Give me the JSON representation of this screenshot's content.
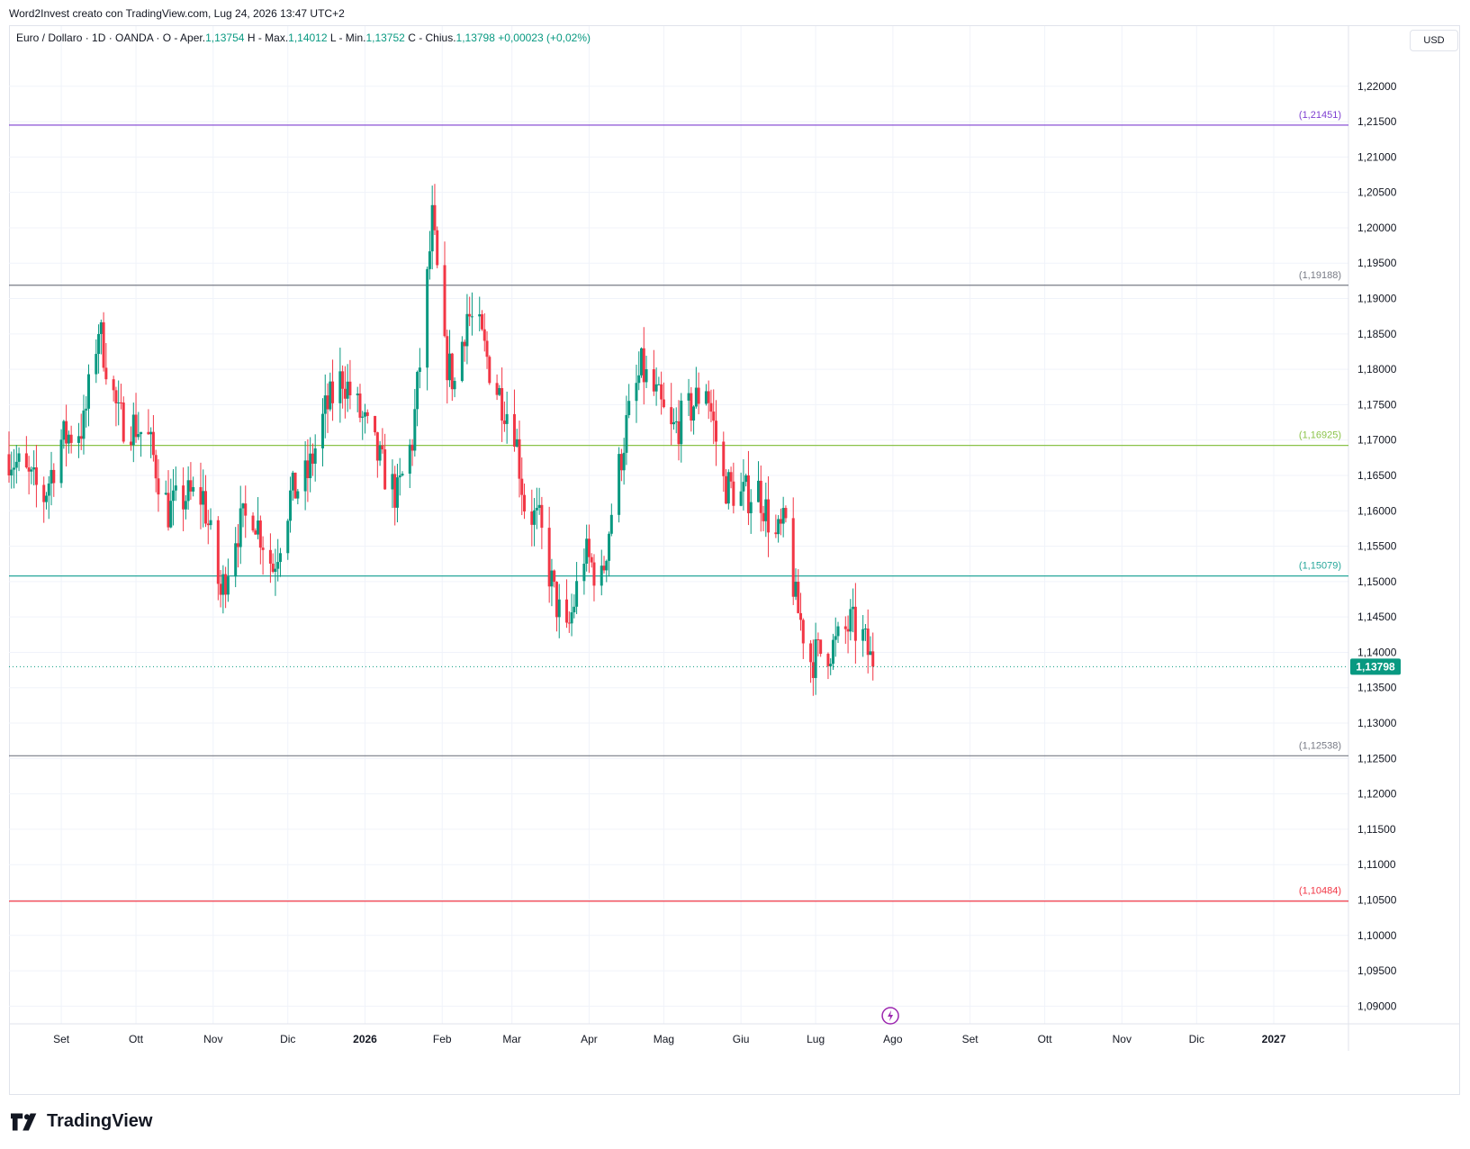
{
  "caption": "Word2Invest creato con TradingView.com, Lug 24, 2026 13:47 UTC+2",
  "legend": {
    "symbol": "Euro / Dollaro · 1D · OANDA",
    "open_label": "O - Aper.",
    "open": "1,13754",
    "high_label": "H - Max.",
    "high": "1,14012",
    "low_label": "L - Min.",
    "low": "1,13752",
    "close_label": "C - Chius.",
    "close": "1,13798",
    "change": "+0,00023 (+0,02%)"
  },
  "currency_button": "USD",
  "footer": {
    "logo_text": "TradingView"
  },
  "colors": {
    "up": "#089981",
    "down": "#f23645",
    "grid": "#f0f3fa",
    "text": "#131722",
    "axis_text": "#131722"
  },
  "chart_data": {
    "type": "candlestick",
    "interval": "1D",
    "ylim": [
      1.0875,
      1.2285
    ],
    "y_ticks": [
      "1,22000",
      "1,21500",
      "1,21000",
      "1,20500",
      "1,20000",
      "1,19500",
      "1,19000",
      "1,18500",
      "1,18000",
      "1,17500",
      "1,17000",
      "1,16500",
      "1,16000",
      "1,15500",
      "1,15000",
      "1,14500",
      "1,14000",
      "1,13500",
      "1,13000",
      "1,12500",
      "1,12000",
      "1,11500",
      "1,11000",
      "1,10500",
      "1,10000",
      "1,09500",
      "1,09000"
    ],
    "y_tick_values": [
      1.22,
      1.215,
      1.21,
      1.205,
      1.2,
      1.195,
      1.19,
      1.185,
      1.18,
      1.175,
      1.17,
      1.165,
      1.16,
      1.155,
      1.15,
      1.145,
      1.14,
      1.135,
      1.13,
      1.125,
      1.12,
      1.115,
      1.11,
      1.105,
      1.1,
      1.095,
      1.09
    ],
    "x_range": [
      "2025-08-11",
      "2027-01-31"
    ],
    "x_ticks": [
      {
        "label": "Set",
        "date": "2025-09-01"
      },
      {
        "label": "Ott",
        "date": "2025-10-01"
      },
      {
        "label": "Nov",
        "date": "2025-11-01"
      },
      {
        "label": "Dic",
        "date": "2025-12-01"
      },
      {
        "label": "2026",
        "date": "2026-01-01",
        "bold": true
      },
      {
        "label": "Feb",
        "date": "2026-02-01"
      },
      {
        "label": "Mar",
        "date": "2026-03-01"
      },
      {
        "label": "Apr",
        "date": "2026-04-01"
      },
      {
        "label": "Mag",
        "date": "2026-05-01"
      },
      {
        "label": "Giu",
        "date": "2026-06-01"
      },
      {
        "label": "Lug",
        "date": "2026-07-01"
      },
      {
        "label": "Ago",
        "date": "2026-08-01"
      },
      {
        "label": "Set",
        "date": "2026-09-01"
      },
      {
        "label": "Ott",
        "date": "2026-10-01"
      },
      {
        "label": "Nov",
        "date": "2026-11-01"
      },
      {
        "label": "Dic",
        "date": "2026-12-01"
      },
      {
        "label": "2027",
        "date": "2027-01-01",
        "bold": true
      }
    ],
    "last_price": {
      "value": 1.13798,
      "label": "1,13798",
      "color": "#089981"
    },
    "horizontal_levels": [
      {
        "value": 1.21451,
        "label": "(1,21451)",
        "color": "#7e3fd1"
      },
      {
        "value": 1.19188,
        "label": "(1,19188)",
        "color": "#787b86"
      },
      {
        "value": 1.16925,
        "label": "(1,16925)",
        "color": "#8bc34a"
      },
      {
        "value": 1.15079,
        "label": "(1,15079)",
        "color": "#26a69a"
      },
      {
        "value": 1.12538,
        "label": "(1,12538)",
        "color": "#787b86"
      },
      {
        "value": 1.10484,
        "label": "(1,10484)",
        "color": "#f23645"
      }
    ],
    "marker_date": "2026-07-31",
    "ohlc_trend": [
      [
        "2025-08-11",
        1.168
      ],
      [
        "2025-08-20",
        1.164
      ],
      [
        "2025-08-25",
        1.162
      ],
      [
        "2025-09-01",
        1.17
      ],
      [
        "2025-09-10",
        1.172
      ],
      [
        "2025-09-16",
        1.186
      ],
      [
        "2025-09-24",
        1.173
      ],
      [
        "2025-10-01",
        1.172
      ],
      [
        "2025-10-06",
        1.17
      ],
      [
        "2025-10-14",
        1.16
      ],
      [
        "2025-10-21",
        1.162
      ],
      [
        "2025-10-28",
        1.162
      ],
      [
        "2025-11-04",
        1.148
      ],
      [
        "2025-11-10",
        1.157
      ],
      [
        "2025-11-17",
        1.16
      ],
      [
        "2025-11-25",
        1.152
      ],
      [
        "2025-12-02",
        1.162
      ],
      [
        "2025-12-09",
        1.165
      ],
      [
        "2025-12-16",
        1.174
      ],
      [
        "2025-12-23",
        1.179
      ],
      [
        "2026-01-01",
        1.172
      ],
      [
        "2026-01-08",
        1.166
      ],
      [
        "2026-01-14",
        1.162
      ],
      [
        "2026-01-20",
        1.17
      ],
      [
        "2026-01-25",
        1.188
      ],
      [
        "2026-01-28",
        1.201
      ],
      [
        "2026-02-02",
        1.182
      ],
      [
        "2026-02-06",
        1.178
      ],
      [
        "2026-02-11",
        1.188
      ],
      [
        "2026-02-16",
        1.185
      ],
      [
        "2026-02-22",
        1.178
      ],
      [
        "2026-03-02",
        1.172
      ],
      [
        "2026-03-06",
        1.161
      ],
      [
        "2026-03-12",
        1.158
      ],
      [
        "2026-03-18",
        1.148
      ],
      [
        "2026-03-23",
        1.142
      ],
      [
        "2026-03-30",
        1.154
      ],
      [
        "2026-04-06",
        1.15
      ],
      [
        "2026-04-10",
        1.16
      ],
      [
        "2026-04-16",
        1.172
      ],
      [
        "2026-04-22",
        1.18
      ],
      [
        "2026-04-28",
        1.176
      ],
      [
        "2026-05-04",
        1.171
      ],
      [
        "2026-05-11",
        1.174
      ],
      [
        "2026-05-18",
        1.178
      ],
      [
        "2026-05-25",
        1.164
      ],
      [
        "2026-06-01",
        1.162
      ],
      [
        "2026-06-08",
        1.163
      ],
      [
        "2026-06-15",
        1.156
      ],
      [
        "2026-06-19",
        1.158
      ],
      [
        "2026-06-23",
        1.147
      ],
      [
        "2026-06-29",
        1.139
      ],
      [
        "2026-07-03",
        1.14
      ],
      [
        "2026-07-09",
        1.141
      ],
      [
        "2026-07-15",
        1.144
      ],
      [
        "2026-07-20",
        1.142
      ],
      [
        "2026-07-24",
        1.13798
      ]
    ]
  }
}
